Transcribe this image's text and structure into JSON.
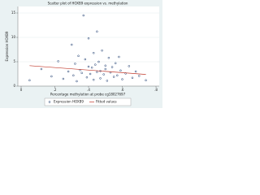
{
  "chart_data": {
    "type": "scatter",
    "title": "Scatter plot of HOXB9 expression vs. methylation",
    "x_label": "Percentage methylation at probe cg18027697",
    "y_label": "Expression HOXB9",
    "xlim": [
      0,
      0.8
    ],
    "xticks": [
      0,
      {
        "value": 0.2,
        "label": ".2"
      },
      {
        "value": 0.4,
        "label": ".4"
      },
      {
        "value": 0.6,
        "label": ".6"
      },
      {
        "value": 0.8,
        "label": ".8"
      }
    ],
    "ylim": [
      0,
      16
    ],
    "yticks": [
      0,
      5,
      10,
      15
    ],
    "series": [
      {
        "name": "Expression HOXB9",
        "color": "#1a3a6e",
        "x": [
          0.05,
          0.12,
          0.18,
          0.22,
          0.25,
          0.28,
          0.3,
          0.31,
          0.32,
          0.33,
          0.34,
          0.35,
          0.36,
          0.37,
          0.38,
          0.39,
          0.4,
          0.4,
          0.41,
          0.42,
          0.43,
          0.43,
          0.44,
          0.45,
          0.45,
          0.46,
          0.47,
          0.47,
          0.48,
          0.49,
          0.5,
          0.5,
          0.51,
          0.52,
          0.53,
          0.54,
          0.55,
          0.56,
          0.57,
          0.58,
          0.59,
          0.6,
          0.62,
          0.64,
          0.66,
          0.68,
          0.7,
          0.74
        ],
        "values": [
          1.2,
          3.5,
          2.0,
          5.1,
          1.5,
          3.0,
          8.5,
          2.2,
          4.6,
          1.0,
          6.2,
          3.3,
          2.7,
          14.5,
          5.5,
          1.8,
          4.0,
          9.8,
          2.5,
          3.8,
          6.8,
          1.3,
          4.4,
          2.9,
          11.2,
          5.0,
          3.1,
          1.6,
          7.3,
          2.4,
          4.2,
          3.5,
          1.1,
          5.8,
          2.8,
          3.9,
          1.9,
          4.7,
          2.2,
          6.0,
          3.2,
          1.4,
          2.6,
          4.1,
          1.7,
          3.0,
          2.1,
          1.2
        ]
      },
      {
        "name": "Fitted values",
        "color": "#c0392b",
        "line": true,
        "x": [
          0.05,
          0.74
        ],
        "values": [
          4.2,
          2.4
        ]
      }
    ]
  }
}
